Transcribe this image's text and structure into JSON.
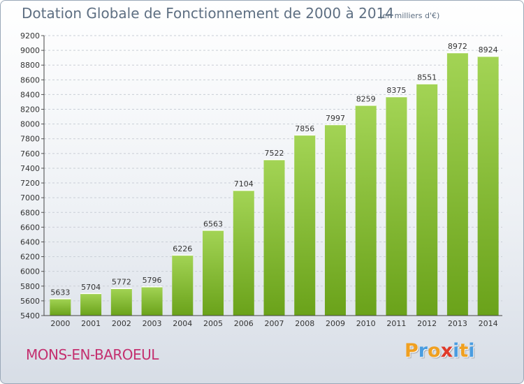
{
  "chart_data": {
    "type": "bar",
    "title": "Dotation Globale de Fonctionnement de 2000 à 2014",
    "unit_label": "(en milliers d'€)",
    "categories": [
      "2000",
      "2001",
      "2002",
      "2003",
      "2004",
      "2005",
      "2006",
      "2007",
      "2008",
      "2009",
      "2010",
      "2011",
      "2012",
      "2013",
      "2014"
    ],
    "values": [
      5633,
      5704,
      5772,
      5796,
      6226,
      6563,
      7104,
      7522,
      7856,
      7997,
      8259,
      8375,
      8551,
      8972,
      8924
    ],
    "ylim": [
      5400,
      9200
    ],
    "yticks": [
      5400,
      5600,
      5800,
      6000,
      6200,
      6400,
      6600,
      6800,
      7000,
      7200,
      7400,
      7600,
      7800,
      8000,
      8200,
      8400,
      8600,
      8800,
      9000,
      9200
    ],
    "grid": true,
    "bar_color_top": "#a3d455",
    "bar_color_bottom": "#6aa21a"
  },
  "footer": {
    "city": "MONS-EN-BAROEUL",
    "logo_letters": [
      "P",
      "r",
      "o",
      "x",
      "i",
      "t",
      "i"
    ],
    "logo_colors": [
      "#f0a020",
      "#4a9de0",
      "#f0a020",
      "#e03a2a",
      "#4a9de0",
      "#f0a020",
      "#4a9de0"
    ]
  }
}
